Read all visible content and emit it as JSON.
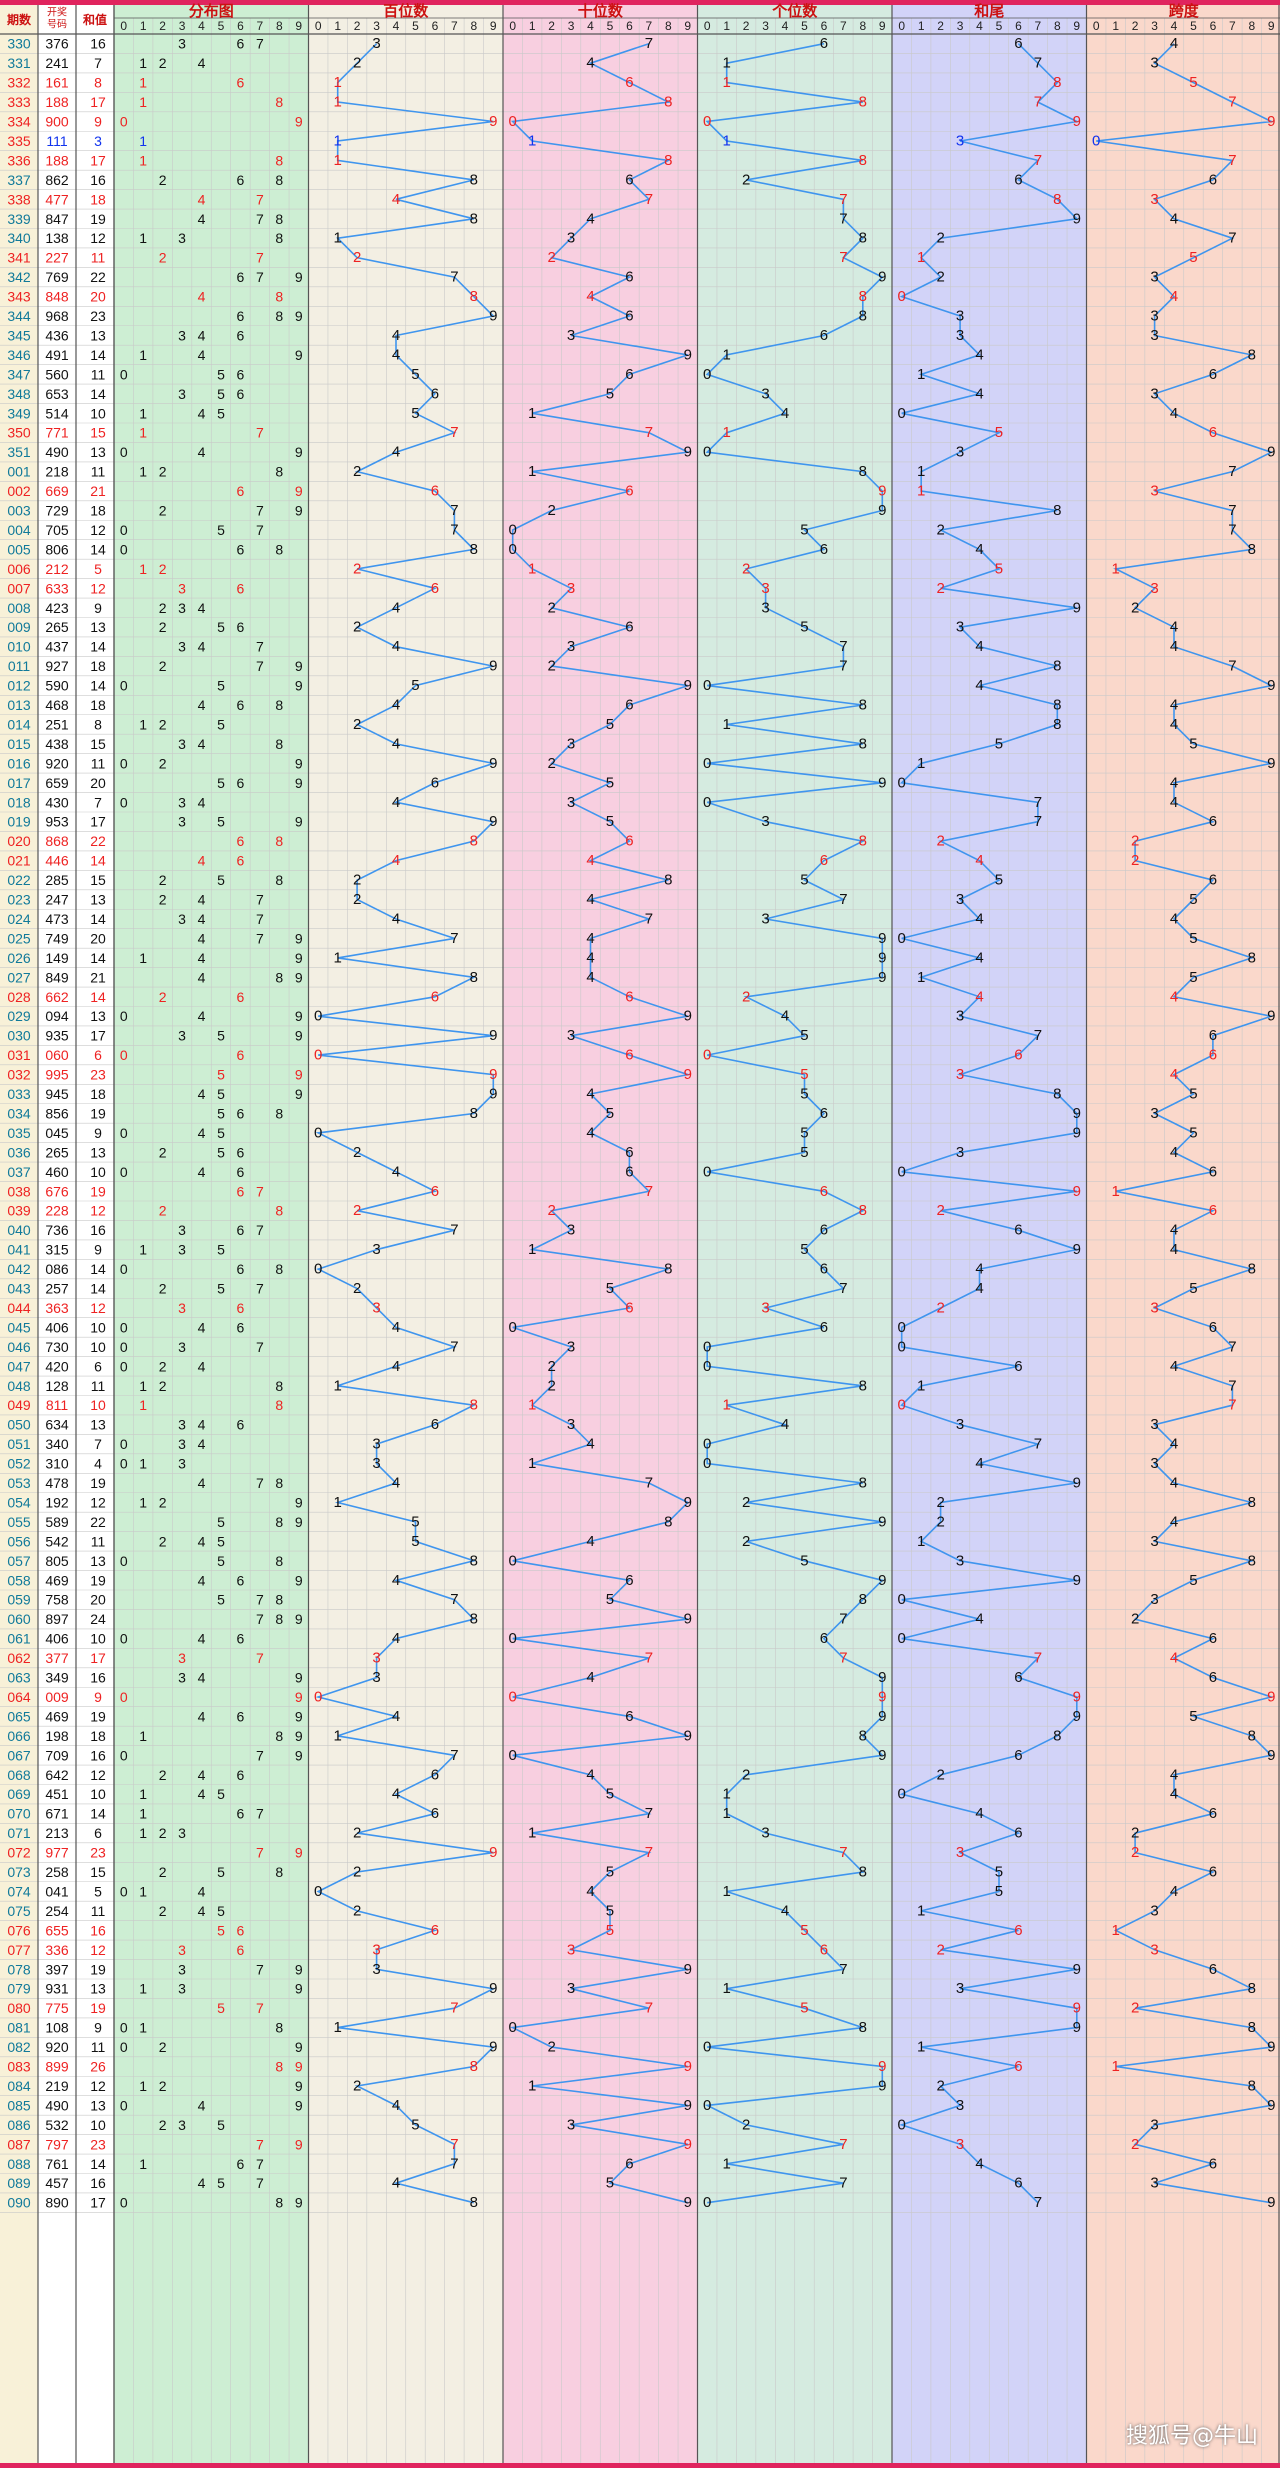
{
  "header": {
    "period": "期数",
    "draw": "开奖号码",
    "sum": "和值",
    "sections": [
      "分布图",
      "百位数",
      "十位数",
      "个位数",
      "和尾",
      "跨度"
    ],
    "digits": [
      "0",
      "1",
      "2",
      "3",
      "4",
      "5",
      "6",
      "7",
      "8",
      "9"
    ]
  },
  "watermark": "搜狐号@牛山",
  "colors": {
    "red": "#ee2222",
    "blue": "#1133ee",
    "line": "#3f95ee",
    "header_red": "#cc1111",
    "bg_fenbu": "#cdeed3",
    "bg_bai": "#f3efe3",
    "bg_shi": "#f8cfe0",
    "bg_ge": "#d5ebe0",
    "bg_hewei": "#d2d3f8",
    "bg_kuadu": "#fad8cb"
  },
  "chart_data": {
    "type": "table",
    "title": "",
    "columns": [
      "期数",
      "开奖号码",
      "和值",
      "分布图",
      "百位数",
      "十位数",
      "个位数",
      "和尾",
      "跨度"
    ],
    "rows": [
      {
        "period": "330",
        "draw": "376",
        "sum": 16
      },
      {
        "period": "331",
        "draw": "241",
        "sum": 7
      },
      {
        "period": "332",
        "draw": "161",
        "sum": 8
      },
      {
        "period": "333",
        "draw": "188",
        "sum": 17
      },
      {
        "period": "334",
        "draw": "900",
        "sum": 9
      },
      {
        "period": "335",
        "draw": "111",
        "sum": 3
      },
      {
        "period": "336",
        "draw": "188",
        "sum": 17
      },
      {
        "period": "337",
        "draw": "862",
        "sum": 16
      },
      {
        "period": "338",
        "draw": "477",
        "sum": 18
      },
      {
        "period": "339",
        "draw": "847",
        "sum": 19
      },
      {
        "period": "340",
        "draw": "138",
        "sum": 12
      },
      {
        "period": "341",
        "draw": "227",
        "sum": 11
      },
      {
        "period": "342",
        "draw": "769",
        "sum": 22
      },
      {
        "period": "343",
        "draw": "848",
        "sum": 20
      },
      {
        "period": "344",
        "draw": "968",
        "sum": 23
      },
      {
        "period": "345",
        "draw": "436",
        "sum": 13
      },
      {
        "period": "346",
        "draw": "491",
        "sum": 14
      },
      {
        "period": "347",
        "draw": "560",
        "sum": 11
      },
      {
        "period": "348",
        "draw": "653",
        "sum": 14
      },
      {
        "period": "349",
        "draw": "514",
        "sum": 10
      },
      {
        "period": "350",
        "draw": "771",
        "sum": 15
      },
      {
        "period": "351",
        "draw": "490",
        "sum": 13
      },
      {
        "period": "001",
        "draw": "218",
        "sum": 11
      },
      {
        "period": "002",
        "draw": "669",
        "sum": 21
      },
      {
        "period": "003",
        "draw": "729",
        "sum": 18
      },
      {
        "period": "004",
        "draw": "705",
        "sum": 12
      },
      {
        "period": "005",
        "draw": "806",
        "sum": 14
      },
      {
        "period": "006",
        "draw": "212",
        "sum": 5
      },
      {
        "period": "007",
        "draw": "633",
        "sum": 12
      },
      {
        "period": "008",
        "draw": "423",
        "sum": 9
      },
      {
        "period": "009",
        "draw": "265",
        "sum": 13
      },
      {
        "period": "010",
        "draw": "437",
        "sum": 14
      },
      {
        "period": "011",
        "draw": "927",
        "sum": 18
      },
      {
        "period": "012",
        "draw": "590",
        "sum": 14
      },
      {
        "period": "013",
        "draw": "468",
        "sum": 18
      },
      {
        "period": "014",
        "draw": "251",
        "sum": 8
      },
      {
        "period": "015",
        "draw": "438",
        "sum": 15
      },
      {
        "period": "016",
        "draw": "920",
        "sum": 11
      },
      {
        "period": "017",
        "draw": "659",
        "sum": 20
      },
      {
        "period": "018",
        "draw": "430",
        "sum": 7
      },
      {
        "period": "019",
        "draw": "953",
        "sum": 17
      },
      {
        "period": "020",
        "draw": "868",
        "sum": 22
      },
      {
        "period": "021",
        "draw": "446",
        "sum": 14
      },
      {
        "period": "022",
        "draw": "285",
        "sum": 15
      },
      {
        "period": "023",
        "draw": "247",
        "sum": 13
      },
      {
        "period": "024",
        "draw": "473",
        "sum": 14
      },
      {
        "period": "025",
        "draw": "749",
        "sum": 20
      },
      {
        "period": "026",
        "draw": "149",
        "sum": 14
      },
      {
        "period": "027",
        "draw": "849",
        "sum": 21
      },
      {
        "period": "028",
        "draw": "662",
        "sum": 14
      },
      {
        "period": "029",
        "draw": "094",
        "sum": 13
      },
      {
        "period": "030",
        "draw": "935",
        "sum": 17
      },
      {
        "period": "031",
        "draw": "060",
        "sum": 6
      },
      {
        "period": "032",
        "draw": "995",
        "sum": 23
      },
      {
        "period": "033",
        "draw": "945",
        "sum": 18
      },
      {
        "period": "034",
        "draw": "856",
        "sum": 19
      },
      {
        "period": "035",
        "draw": "045",
        "sum": 9
      },
      {
        "period": "036",
        "draw": "265",
        "sum": 13
      },
      {
        "period": "037",
        "draw": "460",
        "sum": 10
      },
      {
        "period": "038",
        "draw": "676",
        "sum": 19
      },
      {
        "period": "039",
        "draw": "228",
        "sum": 12
      },
      {
        "period": "040",
        "draw": "736",
        "sum": 16
      },
      {
        "period": "041",
        "draw": "315",
        "sum": 9
      },
      {
        "period": "042",
        "draw": "086",
        "sum": 14
      },
      {
        "period": "043",
        "draw": "257",
        "sum": 14
      },
      {
        "period": "044",
        "draw": "363",
        "sum": 12
      },
      {
        "period": "045",
        "draw": "406",
        "sum": 10
      },
      {
        "period": "046",
        "draw": "730",
        "sum": 10
      },
      {
        "period": "047",
        "draw": "420",
        "sum": 6
      },
      {
        "period": "048",
        "draw": "128",
        "sum": 11
      },
      {
        "period": "049",
        "draw": "811",
        "sum": 10
      },
      {
        "period": "050",
        "draw": "634",
        "sum": 13
      },
      {
        "period": "051",
        "draw": "340",
        "sum": 7
      },
      {
        "period": "052",
        "draw": "310",
        "sum": 4
      },
      {
        "period": "053",
        "draw": "478",
        "sum": 19
      },
      {
        "period": "054",
        "draw": "192",
        "sum": 12
      },
      {
        "period": "055",
        "draw": "589",
        "sum": 22
      },
      {
        "period": "056",
        "draw": "542",
        "sum": 11
      },
      {
        "period": "057",
        "draw": "805",
        "sum": 13
      },
      {
        "period": "058",
        "draw": "469",
        "sum": 19
      },
      {
        "period": "059",
        "draw": "758",
        "sum": 20
      },
      {
        "period": "060",
        "draw": "897",
        "sum": 24
      },
      {
        "period": "061",
        "draw": "406",
        "sum": 10
      },
      {
        "period": "062",
        "draw": "377",
        "sum": 17
      },
      {
        "period": "063",
        "draw": "349",
        "sum": 16
      },
      {
        "period": "064",
        "draw": "009",
        "sum": 9
      },
      {
        "period": "065",
        "draw": "469",
        "sum": 19
      },
      {
        "period": "066",
        "draw": "198",
        "sum": 18
      },
      {
        "period": "067",
        "draw": "709",
        "sum": 16
      },
      {
        "period": "068",
        "draw": "642",
        "sum": 12
      },
      {
        "period": "069",
        "draw": "451",
        "sum": 10
      },
      {
        "period": "070",
        "draw": "671",
        "sum": 14
      },
      {
        "period": "071",
        "draw": "213",
        "sum": 6
      },
      {
        "period": "072",
        "draw": "977",
        "sum": 23
      },
      {
        "period": "073",
        "draw": "258",
        "sum": 15
      },
      {
        "period": "074",
        "draw": "041",
        "sum": 5
      },
      {
        "period": "075",
        "draw": "254",
        "sum": 11
      },
      {
        "period": "076",
        "draw": "655",
        "sum": 16
      },
      {
        "period": "077",
        "draw": "336",
        "sum": 12
      },
      {
        "period": "078",
        "draw": "397",
        "sum": 19
      },
      {
        "period": "079",
        "draw": "931",
        "sum": 13
      },
      {
        "period": "080",
        "draw": "775",
        "sum": 19
      },
      {
        "period": "081",
        "draw": "108",
        "sum": 9
      },
      {
        "period": "082",
        "draw": "920",
        "sum": 11
      },
      {
        "period": "083",
        "draw": "899",
        "sum": 26
      },
      {
        "period": "084",
        "draw": "219",
        "sum": 12
      },
      {
        "period": "085",
        "draw": "490",
        "sum": 13
      },
      {
        "period": "086",
        "draw": "532",
        "sum": 10
      },
      {
        "period": "087",
        "draw": "797",
        "sum": 23
      },
      {
        "period": "088",
        "draw": "761",
        "sum": 14
      },
      {
        "period": "089",
        "draw": "457",
        "sum": 16
      },
      {
        "period": "090",
        "draw": "890",
        "sum": 17
      }
    ]
  }
}
